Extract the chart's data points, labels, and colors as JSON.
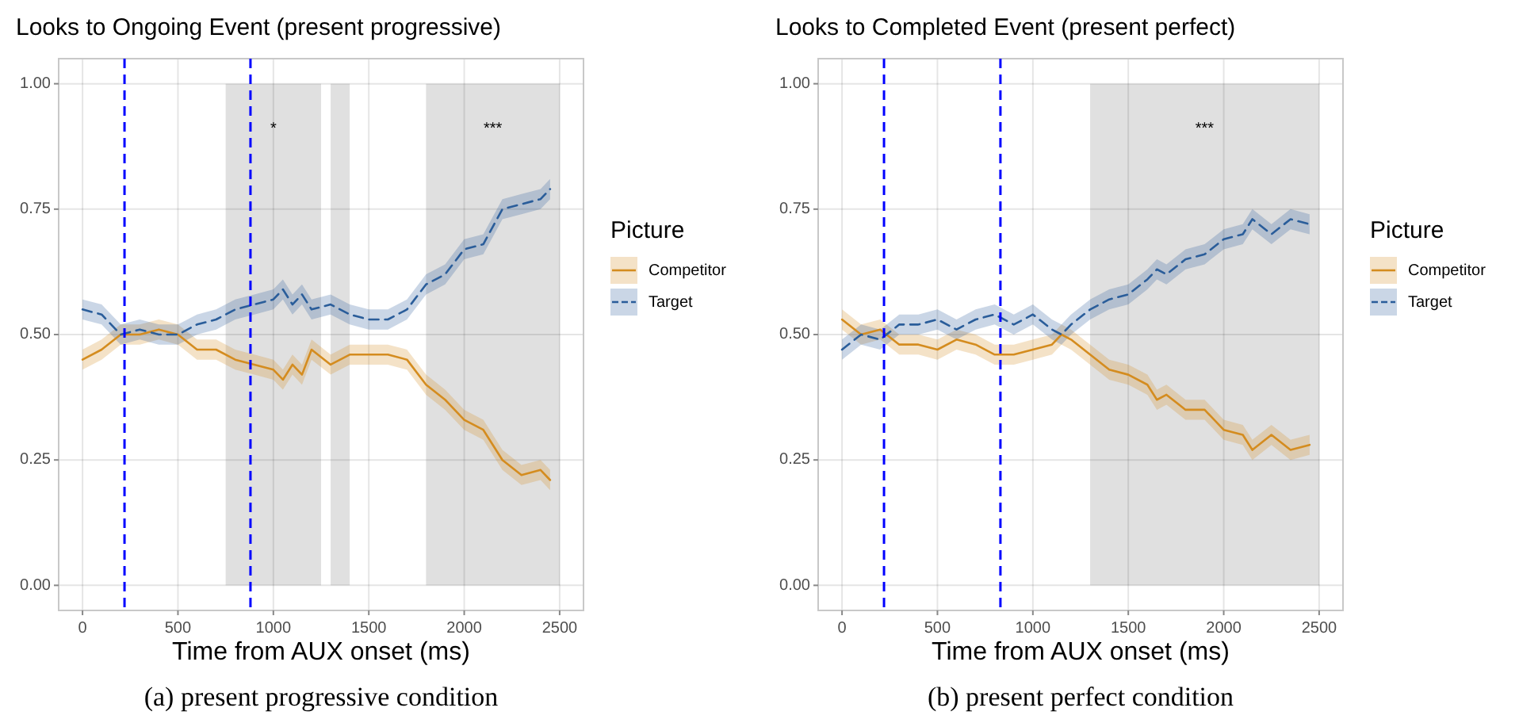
{
  "chart_data": [
    {
      "type": "line",
      "title": "Looks to Ongoing Event (present progressive)",
      "xlabel": "Time from AUX onset (ms)",
      "legend_title": "Picture",
      "legend": "right",
      "grid": true,
      "marker": "none",
      "x": [
        0,
        100,
        200,
        300,
        400,
        500,
        600,
        700,
        800,
        900,
        1000,
        1050,
        1100,
        1150,
        1200,
        1300,
        1400,
        1500,
        1600,
        1700,
        1800,
        1900,
        2000,
        2100,
        2200,
        2300,
        2400,
        2450
      ],
      "xlim": [
        -125,
        2625
      ],
      "xticks": [
        0,
        500,
        1000,
        1500,
        2000,
        2500
      ],
      "ylim": [
        -0.05,
        1.05
      ],
      "yticks": [
        {
          "value": 0,
          "label": "0.00"
        },
        {
          "value": 0.25,
          "label": "0.25"
        },
        {
          "value": 0.5,
          "label": "0.50"
        },
        {
          "value": 0.75,
          "label": "0.75"
        },
        {
          "value": 1,
          "label": "1.00"
        }
      ],
      "series": [
        {
          "name": "Competitor",
          "color": "#d48c1f",
          "line_style": "solid",
          "values": [
            0.45,
            0.47,
            0.5,
            0.5,
            0.51,
            0.5,
            0.47,
            0.47,
            0.45,
            0.44,
            0.43,
            0.41,
            0.44,
            0.42,
            0.47,
            0.44,
            0.46,
            0.46,
            0.46,
            0.45,
            0.4,
            0.37,
            0.33,
            0.31,
            0.25,
            0.22,
            0.23,
            0.21
          ],
          "lower": [
            0.43,
            0.45,
            0.48,
            0.48,
            0.49,
            0.48,
            0.45,
            0.45,
            0.43,
            0.42,
            0.41,
            0.39,
            0.42,
            0.4,
            0.45,
            0.42,
            0.44,
            0.44,
            0.44,
            0.43,
            0.38,
            0.35,
            0.31,
            0.29,
            0.23,
            0.2,
            0.21,
            0.19
          ],
          "upper": [
            0.47,
            0.49,
            0.52,
            0.52,
            0.53,
            0.52,
            0.49,
            0.49,
            0.47,
            0.46,
            0.45,
            0.43,
            0.46,
            0.44,
            0.49,
            0.46,
            0.48,
            0.48,
            0.48,
            0.47,
            0.42,
            0.39,
            0.35,
            0.33,
            0.27,
            0.24,
            0.25,
            0.23
          ]
        },
        {
          "name": "Target",
          "color": "#2a5d9a",
          "line_style": "dashed",
          "values": [
            0.55,
            0.54,
            0.5,
            0.51,
            0.5,
            0.5,
            0.52,
            0.53,
            0.55,
            0.56,
            0.57,
            0.59,
            0.56,
            0.58,
            0.55,
            0.56,
            0.54,
            0.53,
            0.53,
            0.55,
            0.6,
            0.62,
            0.67,
            0.68,
            0.75,
            0.76,
            0.77,
            0.79
          ],
          "lower": [
            0.53,
            0.52,
            0.48,
            0.49,
            0.48,
            0.48,
            0.5,
            0.51,
            0.53,
            0.54,
            0.55,
            0.57,
            0.54,
            0.56,
            0.53,
            0.54,
            0.52,
            0.51,
            0.51,
            0.53,
            0.58,
            0.6,
            0.65,
            0.66,
            0.73,
            0.74,
            0.75,
            0.77
          ],
          "upper": [
            0.57,
            0.56,
            0.52,
            0.53,
            0.52,
            0.52,
            0.54,
            0.55,
            0.57,
            0.58,
            0.59,
            0.61,
            0.58,
            0.6,
            0.57,
            0.58,
            0.56,
            0.55,
            0.55,
            0.57,
            0.62,
            0.64,
            0.69,
            0.7,
            0.77,
            0.78,
            0.79,
            0.81
          ]
        }
      ],
      "ref_lines": [
        {
          "axis": "x",
          "value": 220,
          "color": "#0000ff",
          "line_style": "dashed"
        },
        {
          "axis": "x",
          "value": 880,
          "color": "#0000ff",
          "line_style": "dashed"
        }
      ],
      "bands": [
        {
          "axis": "x",
          "from": 750,
          "to": 1250,
          "color": "#e0e0e0",
          "label": "*"
        },
        {
          "axis": "x",
          "from": 1300,
          "to": 1400,
          "color": "#e0e0e0"
        },
        {
          "axis": "x",
          "from": 1800,
          "to": 2500,
          "color": "#e0e0e0",
          "label": "***"
        }
      ],
      "annotations": [
        "(a) present progressive condition"
      ]
    },
    {
      "type": "line",
      "title": "Looks to Completed Event (present perfect)",
      "xlabel": "Time from AUX onset (ms)",
      "legend_title": "Picture",
      "legend": "right",
      "grid": true,
      "marker": "none",
      "x": [
        0,
        100,
        200,
        300,
        400,
        500,
        600,
        700,
        800,
        900,
        1000,
        1100,
        1150,
        1200,
        1300,
        1400,
        1500,
        1600,
        1650,
        1700,
        1800,
        1900,
        2000,
        2100,
        2150,
        2250,
        2350,
        2450
      ],
      "xlim": [
        -125,
        2625
      ],
      "xticks": [
        0,
        500,
        1000,
        1500,
        2000,
        2500
      ],
      "ylim": [
        -0.05,
        1.05
      ],
      "yticks": [
        {
          "value": 0,
          "label": "0.00"
        },
        {
          "value": 0.25,
          "label": "0.25"
        },
        {
          "value": 0.5,
          "label": "0.50"
        },
        {
          "value": 0.75,
          "label": "0.75"
        },
        {
          "value": 1,
          "label": "1.00"
        }
      ],
      "series": [
        {
          "name": "Competitor",
          "color": "#d48c1f",
          "line_style": "solid",
          "values": [
            0.53,
            0.5,
            0.51,
            0.48,
            0.48,
            0.47,
            0.49,
            0.48,
            0.46,
            0.46,
            0.47,
            0.48,
            0.5,
            0.49,
            0.46,
            0.43,
            0.42,
            0.4,
            0.37,
            0.38,
            0.35,
            0.35,
            0.31,
            0.3,
            0.27,
            0.3,
            0.27,
            0.28
          ],
          "lower": [
            0.51,
            0.48,
            0.49,
            0.46,
            0.46,
            0.45,
            0.47,
            0.46,
            0.44,
            0.44,
            0.45,
            0.46,
            0.48,
            0.47,
            0.44,
            0.41,
            0.4,
            0.38,
            0.35,
            0.36,
            0.33,
            0.33,
            0.29,
            0.28,
            0.25,
            0.28,
            0.25,
            0.26
          ],
          "upper": [
            0.55,
            0.52,
            0.53,
            0.5,
            0.5,
            0.49,
            0.51,
            0.5,
            0.48,
            0.48,
            0.49,
            0.5,
            0.52,
            0.51,
            0.48,
            0.45,
            0.44,
            0.42,
            0.39,
            0.4,
            0.37,
            0.37,
            0.33,
            0.32,
            0.29,
            0.32,
            0.29,
            0.3
          ]
        },
        {
          "name": "Target",
          "color": "#2a5d9a",
          "line_style": "dashed",
          "values": [
            0.47,
            0.5,
            0.49,
            0.52,
            0.52,
            0.53,
            0.51,
            0.53,
            0.54,
            0.52,
            0.54,
            0.51,
            0.5,
            0.52,
            0.55,
            0.57,
            0.58,
            0.61,
            0.63,
            0.62,
            0.65,
            0.66,
            0.69,
            0.7,
            0.73,
            0.7,
            0.73,
            0.72
          ],
          "lower": [
            0.45,
            0.48,
            0.47,
            0.5,
            0.5,
            0.51,
            0.49,
            0.51,
            0.52,
            0.5,
            0.52,
            0.49,
            0.48,
            0.5,
            0.53,
            0.55,
            0.56,
            0.59,
            0.61,
            0.6,
            0.63,
            0.64,
            0.67,
            0.68,
            0.71,
            0.68,
            0.71,
            0.7
          ],
          "upper": [
            0.49,
            0.52,
            0.51,
            0.54,
            0.54,
            0.55,
            0.53,
            0.55,
            0.56,
            0.54,
            0.56,
            0.53,
            0.52,
            0.54,
            0.57,
            0.59,
            0.6,
            0.63,
            0.65,
            0.64,
            0.67,
            0.68,
            0.71,
            0.72,
            0.75,
            0.72,
            0.75,
            0.74
          ]
        }
      ],
      "ref_lines": [
        {
          "axis": "x",
          "value": 220,
          "color": "#0000ff",
          "line_style": "dashed"
        },
        {
          "axis": "x",
          "value": 830,
          "color": "#0000ff",
          "line_style": "dashed"
        }
      ],
      "bands": [
        {
          "axis": "x",
          "from": 1300,
          "to": 2500,
          "color": "#e0e0e0",
          "label": "***"
        }
      ],
      "annotations": [
        "(b) present perfect condition"
      ]
    }
  ]
}
